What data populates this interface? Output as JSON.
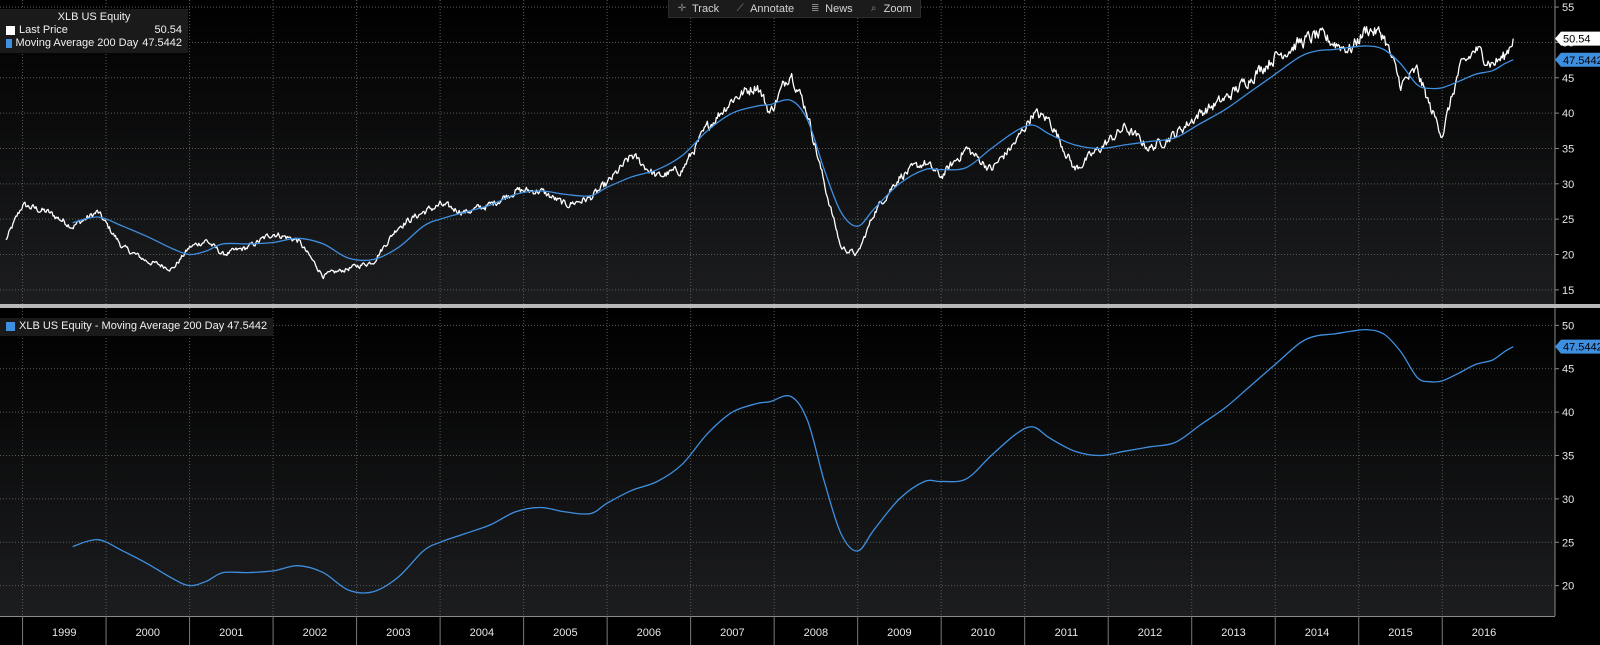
{
  "toolbar": {
    "track_label": "Track",
    "annotate_label": "Annotate",
    "news_label": "News",
    "zoom_label": "Zoom"
  },
  "legend_top": {
    "title": "XLB US Equity",
    "last_price_label": "Last Price",
    "last_price_value": "50.54",
    "ma_label": "Moving Average 200 Day",
    "ma_value": "47.5442"
  },
  "legend_bottom": {
    "label": "XLB US Equity - Moving Average 200 Day 47.5442"
  },
  "colors": {
    "background": "#000000",
    "price_line": "#ffffff",
    "ma_line": "#3f8fe0",
    "grid": "#5a5a5a"
  },
  "chart_data": [
    {
      "type": "line",
      "title": "XLB US Equity",
      "ylim": [
        13,
        56
      ],
      "yticks": [
        15,
        20,
        25,
        30,
        35,
        40,
        45,
        50,
        55
      ],
      "x": [
        1998.8,
        1999.0,
        1999.3,
        1999.6,
        1999.9,
        2000.2,
        2000.5,
        2000.8,
        2001.0,
        2001.2,
        2001.4,
        2001.7,
        2002.0,
        2002.3,
        2002.6,
        2002.9,
        2003.2,
        2003.5,
        2003.8,
        2004.0,
        2004.3,
        2004.6,
        2004.9,
        2005.2,
        2005.5,
        2005.8,
        2006.0,
        2006.3,
        2006.6,
        2006.9,
        2007.2,
        2007.5,
        2007.8,
        2007.95,
        2008.2,
        2008.4,
        2008.6,
        2008.8,
        2009.0,
        2009.2,
        2009.5,
        2009.8,
        2010.0,
        2010.3,
        2010.6,
        2010.9,
        2011.1,
        2011.3,
        2011.6,
        2011.9,
        2012.2,
        2012.5,
        2012.8,
        2013.1,
        2013.4,
        2013.7,
        2014.0,
        2014.3,
        2014.5,
        2014.7,
        2014.9,
        2015.1,
        2015.3,
        2015.5,
        2015.7,
        2015.85,
        2016.0,
        2016.2,
        2016.4,
        2016.6,
        2016.75,
        2016.85
      ],
      "series": [
        {
          "name": "Last Price",
          "current_value": 50.54,
          "values": [
            22,
            27,
            26,
            24,
            26,
            21,
            19,
            18,
            21,
            22,
            20,
            21,
            23,
            22,
            17,
            18,
            19,
            24,
            26,
            27,
            26,
            27,
            29,
            29,
            27,
            28,
            30,
            34,
            31,
            32,
            38,
            42,
            44,
            40,
            46,
            40,
            30,
            21,
            20,
            26,
            31,
            33,
            31,
            35,
            32,
            36,
            40,
            39,
            32,
            35,
            38,
            35,
            37,
            40,
            42,
            45,
            48,
            50,
            51,
            50,
            49,
            52,
            51,
            44,
            46,
            41,
            37,
            46,
            49,
            47,
            48,
            50.54
          ]
        },
        {
          "name": "Moving Average 200 Day",
          "current_value": 47.5442,
          "values": [
            null,
            null,
            null,
            24.5,
            25.3,
            24,
            22.5,
            20.8,
            20,
            20.5,
            21.5,
            21.5,
            21.7,
            22.3,
            21.5,
            19.5,
            19.3,
            21,
            24,
            25,
            26,
            27,
            28.5,
            29,
            28.5,
            28.3,
            29.5,
            31,
            32,
            34,
            37.5,
            40,
            41,
            41.2,
            41.8,
            39,
            32,
            26,
            24,
            26.5,
            30,
            32,
            32,
            32.3,
            35,
            37.5,
            38.3,
            37,
            35.5,
            35,
            35.5,
            36,
            36.5,
            38.5,
            40.5,
            43,
            45.5,
            48,
            48.8,
            49,
            49.3,
            49.5,
            49,
            47,
            44,
            43.5,
            43.6,
            44.5,
            45.5,
            46,
            47,
            47.5442
          ]
        }
      ]
    },
    {
      "type": "line",
      "title": "XLB US Equity - Moving Average 200 Day 47.5442",
      "ylim": [
        16.5,
        52
      ],
      "yticks": [
        20,
        25,
        30,
        35,
        40,
        45,
        50
      ],
      "series": [
        {
          "name": "Moving Average 200 Day",
          "current_value": 47.5442,
          "source": "same as top panel series 2"
        }
      ]
    }
  ],
  "x_axis": {
    "ticks": [
      "1999",
      "2000",
      "2001",
      "2002",
      "2003",
      "2004",
      "2005",
      "2006",
      "2007",
      "2008",
      "2009",
      "2010",
      "2011",
      "2012",
      "2013",
      "2014",
      "2015",
      "2016"
    ]
  }
}
